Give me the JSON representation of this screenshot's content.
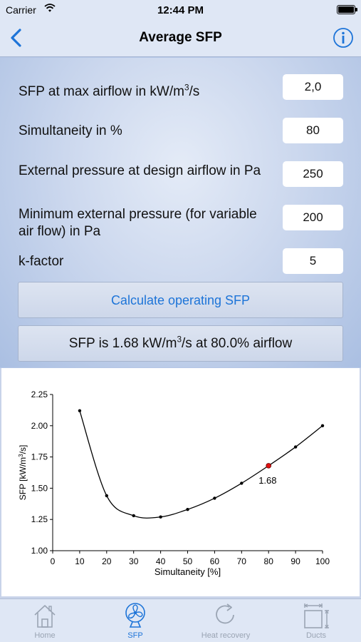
{
  "status_bar": {
    "carrier": "Carrier",
    "time": "12:44 PM"
  },
  "nav": {
    "title": "Average SFP"
  },
  "fields": [
    {
      "label_before": "SFP at max airflow in kW/m",
      "label_sup": "3",
      "label_after": "/s",
      "value": "2,0"
    },
    {
      "label": "Simultaneity in %",
      "value": "80"
    },
    {
      "label": "External pressure at design airflow in Pa",
      "value": "250"
    },
    {
      "label": "Minimum external pressure (for variable air flow) in Pa",
      "value": "200"
    },
    {
      "label": "k-factor",
      "value": "5"
    }
  ],
  "calculate_button": "Calculate operating SFP",
  "result": {
    "before": "SFP is 1.68 kW/m",
    "sup": "3",
    "after": "/s at 80.0% airflow"
  },
  "chart_data": {
    "type": "line",
    "xlabel": "Simultaneity [%]",
    "ylabel_before": "SFP [kW/m",
    "ylabel_sup": "3",
    "ylabel_after": "/s]",
    "x": [
      10,
      20,
      30,
      40,
      50,
      60,
      70,
      80,
      90,
      100
    ],
    "values": [
      2.12,
      1.44,
      1.28,
      1.27,
      1.33,
      1.42,
      1.54,
      1.68,
      1.83,
      2.0
    ],
    "highlight": {
      "x": 80,
      "y": 1.68,
      "label": "1.68",
      "color": "#e01010"
    },
    "xlim": [
      0,
      100
    ],
    "ylim": [
      1.0,
      2.25
    ],
    "xticks": [
      "0",
      "10",
      "20",
      "30",
      "40",
      "50",
      "60",
      "70",
      "80",
      "90",
      "100"
    ],
    "yticks": [
      "1.00",
      "1.25",
      "1.50",
      "1.75",
      "2.00",
      "2.25"
    ],
    "grid": false
  },
  "tabs": [
    {
      "label": "Home",
      "icon": "house-icon",
      "active": false
    },
    {
      "label": "SFP",
      "icon": "fan-icon",
      "active": true
    },
    {
      "label": "Heat recovery",
      "icon": "refresh-icon",
      "active": false
    },
    {
      "label": "Ducts",
      "icon": "duct-size-icon",
      "active": false
    }
  ],
  "colors": {
    "accent": "#1d74d8",
    "highlight_point": "#e01010",
    "background": "#b4c6e6"
  }
}
